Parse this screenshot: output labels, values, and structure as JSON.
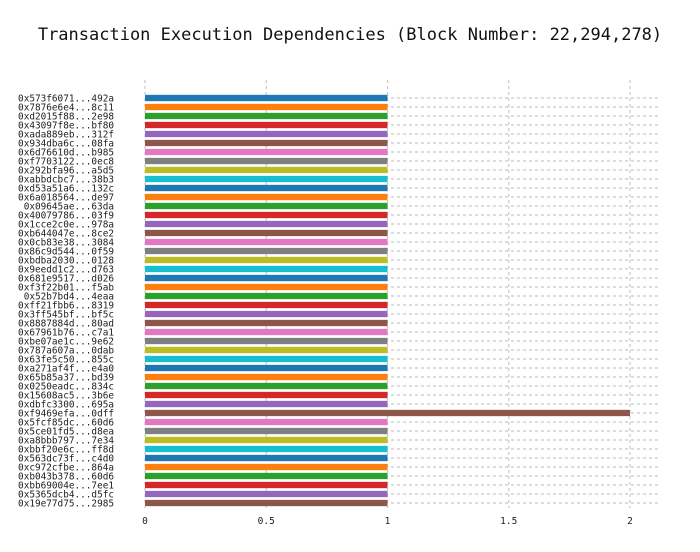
{
  "chart_data": {
    "type": "bar",
    "orientation": "horizontal",
    "title": "Transaction Execution Dependencies (Block Number: 22,294,278)",
    "xlabel": "",
    "ylabel": "",
    "xlim": [
      0,
      2.1
    ],
    "xticks": [
      {
        "value": 0,
        "label": "0"
      },
      {
        "value": 0.5,
        "label": "0.5"
      },
      {
        "value": 1,
        "label": "1"
      },
      {
        "value": 1.5,
        "label": "1.5"
      },
      {
        "value": 2,
        "label": "2"
      }
    ],
    "grid": true,
    "categories": [
      "0x573f6071...492a",
      "0x7876e6e4...8c11",
      "0xd2015f88...2e98",
      "0x43097f8e...bf80",
      "0xada889eb...312f",
      "0x934dba6c...08fa",
      "0x6d76610d...b985",
      "0xf7703122...0ec8",
      "0x292bfa96...a5d5",
      "0xabbdcbc7...38b3",
      "0xd53a51a6...132c",
      "0x6a018564...de97",
      "0x09645ae...63da",
      "0x40079786...03f9",
      "0x1cce2c0e...978a",
      "0xb644047e...8ce2",
      "0x0cb83e38...3084",
      "0x86c9d544...0f59",
      "0xbdba2030...0128",
      "0x9eedd1c2...d763",
      "0x681e9517...d026",
      "0xf3f22b01...f5ab",
      "0x52b7bd4...4eaa",
      "0xff21fbb6...8319",
      "0x3ff545bf...bf5c",
      "0x8887884d...80ad",
      "0x67961b76...c7a1",
      "0xbe07ae1c...9e62",
      "0x787a607a...0dab",
      "0x63fe5c50...855c",
      "0xa271af4f...e4a0",
      "0x65b85a37...bd39",
      "0x0250eadc...834c",
      "0x15608ac5...3b6e",
      "0xdbfc3300...695a",
      "0xf9469efa...0dff",
      "0x5fcf85dc...60d6",
      "0x5ce01fd5...d8ea",
      "0xa8bbb797...7e34",
      "0xbbf20e6c...ff8d",
      "0x563dc73f...c4d0",
      "0xc972cfbe...864a",
      "0xb043b378...60d6",
      "0xbb69004e...7ee1",
      "0x5365dcb4...d5fc",
      "0x19e77d75...2985"
    ],
    "values": [
      1,
      1,
      1,
      1,
      1,
      1,
      1,
      1,
      1,
      1,
      1,
      1,
      1,
      1,
      1,
      1,
      1,
      1,
      1,
      1,
      1,
      1,
      1,
      1,
      1,
      1,
      1,
      1,
      1,
      1,
      1,
      1,
      1,
      1,
      1,
      2,
      1,
      1,
      1,
      1,
      1,
      1,
      1,
      1,
      1,
      1
    ],
    "palette": [
      "#1f77b4",
      "#ff7f0e",
      "#2ca02c",
      "#d62728",
      "#9467bd",
      "#8c564b",
      "#e377c2",
      "#7f7f7f",
      "#bcbd22",
      "#17becf"
    ]
  }
}
